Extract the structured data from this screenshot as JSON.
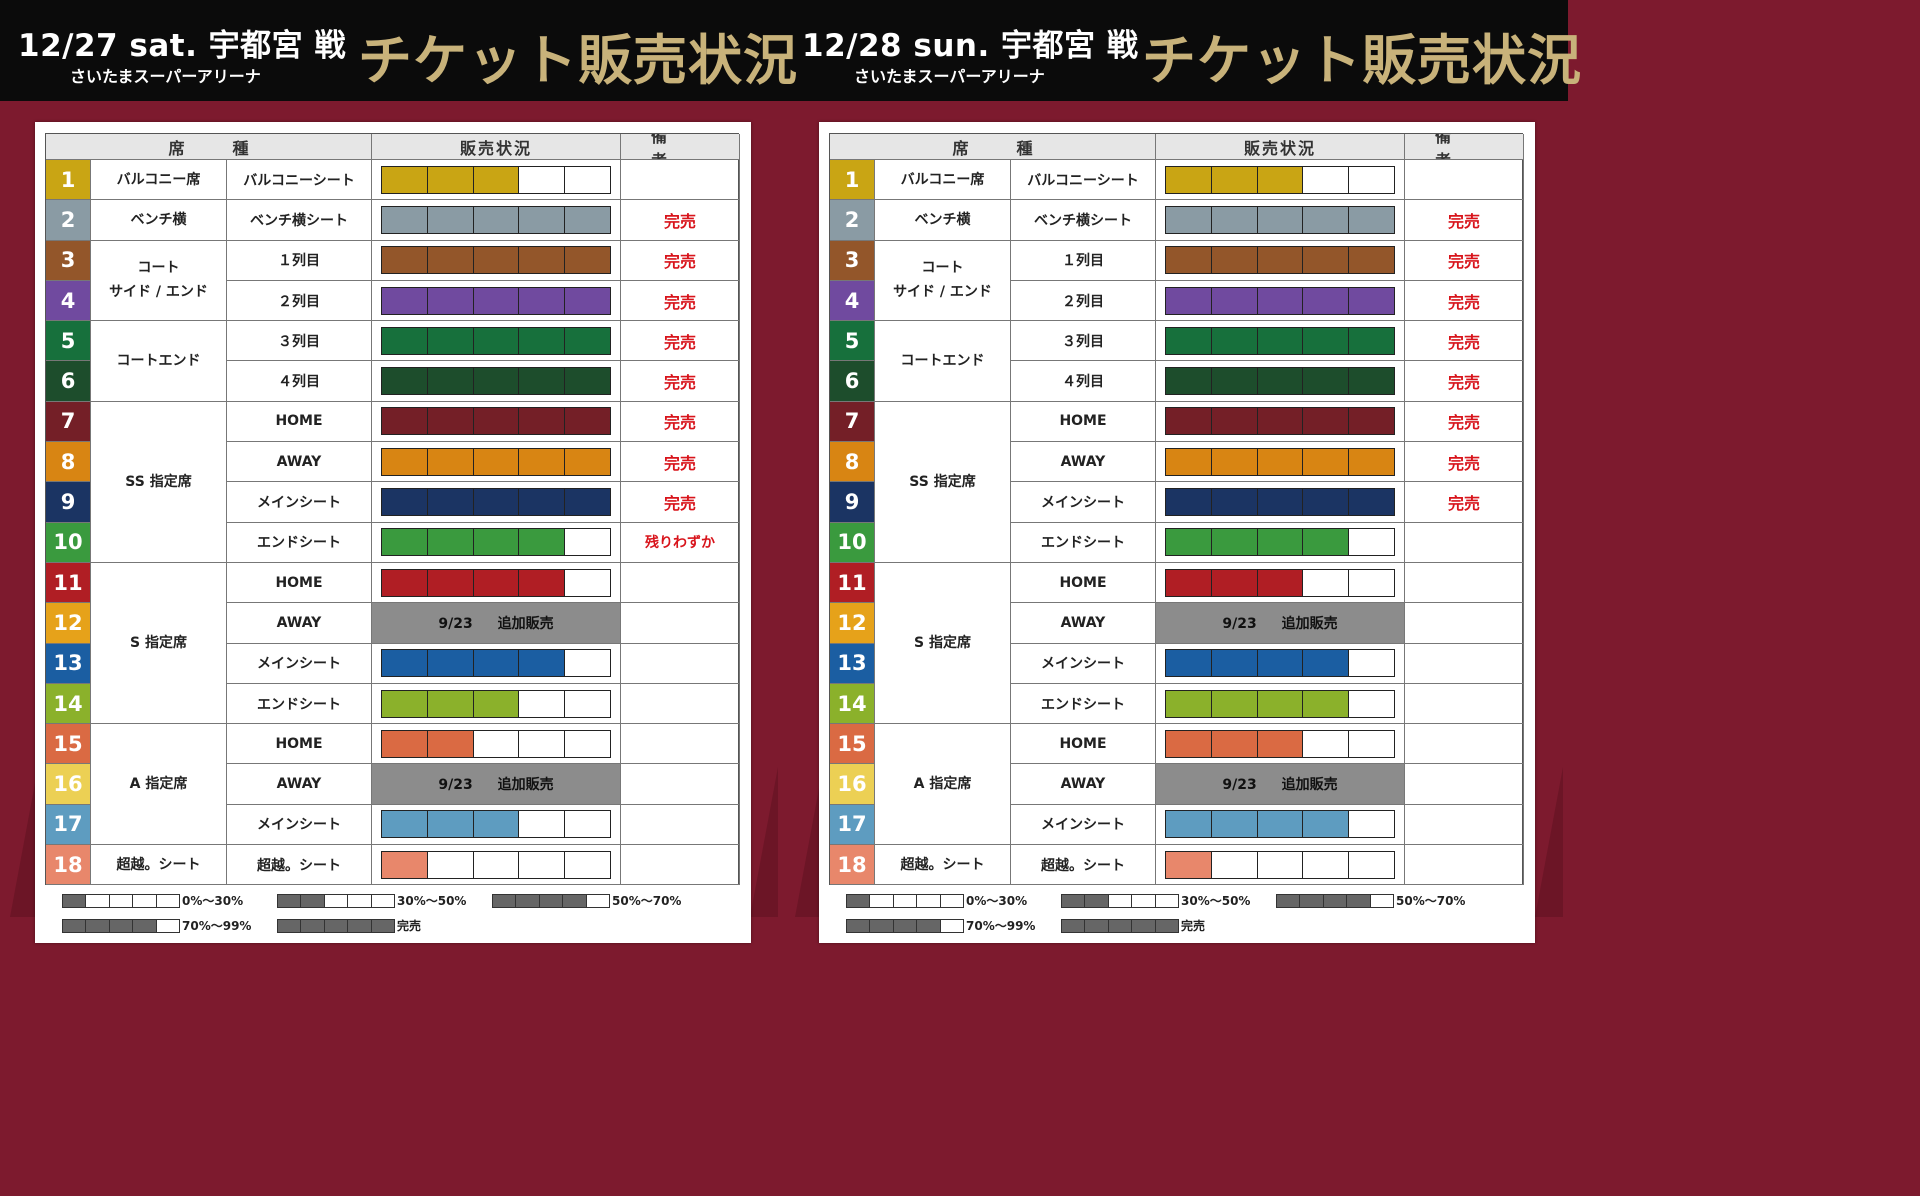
{
  "events": [
    {
      "date": "12/27 sat. 宇都宮 戦",
      "venue": "さいたまスーパーアリーナ",
      "title": "チケット販売状況",
      "headers": {
        "seat": "席種",
        "status": "販売状況",
        "note": "備考"
      },
      "rows": [
        {
          "num": "1",
          "color": "#c9a514",
          "fill": 3,
          "remark": ""
        },
        {
          "num": "2",
          "color": "#8a9ba4",
          "fill": 5,
          "remark": "完売"
        },
        {
          "num": "3",
          "color": "#93562a",
          "fill": 5,
          "remark": "完売"
        },
        {
          "num": "4",
          "color": "#704a9f",
          "fill": 5,
          "remark": "完売"
        },
        {
          "num": "5",
          "color": "#17703c",
          "fill": 5,
          "remark": "完売"
        },
        {
          "num": "6",
          "color": "#1d4d2c",
          "fill": 5,
          "remark": "完売"
        },
        {
          "num": "7",
          "color": "#741f27",
          "fill": 5,
          "remark": "完売"
        },
        {
          "num": "8",
          "color": "#d88513",
          "fill": 5,
          "remark": "完売"
        },
        {
          "num": "9",
          "color": "#1b3463",
          "fill": 5,
          "remark": "完売"
        },
        {
          "num": "10",
          "color": "#3a9a3e",
          "fill": 4,
          "remark": "残りわずか"
        },
        {
          "num": "11",
          "color": "#b01e24",
          "fill": 4,
          "remark": ""
        },
        {
          "num": "12",
          "color": "#e6a21a",
          "fill": null,
          "remark": ""
        },
        {
          "num": "13",
          "color": "#1b5ea2",
          "fill": 4,
          "remark": ""
        },
        {
          "num": "14",
          "color": "#8bb12b",
          "fill": 3,
          "remark": ""
        },
        {
          "num": "15",
          "color": "#da6a43",
          "fill": 2,
          "remark": ""
        },
        {
          "num": "16",
          "color": "#ecd054",
          "fill": null,
          "remark": ""
        },
        {
          "num": "17",
          "color": "#5e9cc0",
          "fill": 3,
          "remark": ""
        },
        {
          "num": "18",
          "color": "#e8876b",
          "fill": 1,
          "remark": ""
        }
      ],
      "legend": {
        "l1": "0%～30%",
        "l2": "30%～50%",
        "l3": "50%～70%",
        "l4": "70%～99%",
        "l5": "完売"
      }
    },
    {
      "date": "12/28 sun. 宇都宮 戦",
      "venue": "さいたまスーパーアリーナ",
      "title": "チケット販売状況",
      "headers": {
        "seat": "席種",
        "status": "販売状況",
        "note": "備考"
      },
      "rows": [
        {
          "num": "1",
          "color": "#c9a514",
          "fill": 3,
          "remark": ""
        },
        {
          "num": "2",
          "color": "#8a9ba4",
          "fill": 5,
          "remark": "完売"
        },
        {
          "num": "3",
          "color": "#93562a",
          "fill": 5,
          "remark": "完売"
        },
        {
          "num": "4",
          "color": "#704a9f",
          "fill": 5,
          "remark": "完売"
        },
        {
          "num": "5",
          "color": "#17703c",
          "fill": 5,
          "remark": "完売"
        },
        {
          "num": "6",
          "color": "#1d4d2c",
          "fill": 5,
          "remark": "完売"
        },
        {
          "num": "7",
          "color": "#741f27",
          "fill": 5,
          "remark": "完売"
        },
        {
          "num": "8",
          "color": "#d88513",
          "fill": 5,
          "remark": "完売"
        },
        {
          "num": "9",
          "color": "#1b3463",
          "fill": 5,
          "remark": "完売"
        },
        {
          "num": "10",
          "color": "#3a9a3e",
          "fill": 4,
          "remark": ""
        },
        {
          "num": "11",
          "color": "#b01e24",
          "fill": 3,
          "remark": ""
        },
        {
          "num": "12",
          "color": "#e6a21a",
          "fill": null,
          "remark": ""
        },
        {
          "num": "13",
          "color": "#1b5ea2",
          "fill": 4,
          "remark": ""
        },
        {
          "num": "14",
          "color": "#8bb12b",
          "fill": 4,
          "remark": ""
        },
        {
          "num": "15",
          "color": "#da6a43",
          "fill": 3,
          "remark": ""
        },
        {
          "num": "16",
          "color": "#ecd054",
          "fill": null,
          "remark": ""
        },
        {
          "num": "17",
          "color": "#5e9cc0",
          "fill": 4,
          "remark": ""
        },
        {
          "num": "18",
          "color": "#e8876b",
          "fill": 1,
          "remark": ""
        }
      ],
      "legend": {
        "l1": "0%～30%",
        "l2": "30%～50%",
        "l3": "50%～70%",
        "l4": "70%～99%",
        "l5": "完売"
      }
    }
  ],
  "categories": {
    "balcony": "バルコニー席",
    "bench": "ベンチ横",
    "court_side_1": "コート",
    "court_side_2": "サイド / エンド",
    "court_end": "コートエンド",
    "ss": "SS 指定席",
    "s": "S 指定席",
    "a": "A 指定席",
    "chouetsu": "超越。シート"
  },
  "subcategories": {
    "r1": "バルコニーシート",
    "r2": "ベンチ横シート",
    "r3": "１列目",
    "r4": "２列目",
    "r5": "３列目",
    "r6": "４列目",
    "r7": "HOME",
    "r8": "AWAY",
    "r9": "メインシート",
    "r10": "エンドシート",
    "r11": "HOME",
    "r12": "AWAY",
    "r13": "メインシート",
    "r14": "エンドシート",
    "r15": "HOME",
    "r16": "AWAY",
    "r17": "メインシート",
    "r18": "超越。シート"
  },
  "addsale_text": "9/23 追加販売"
}
